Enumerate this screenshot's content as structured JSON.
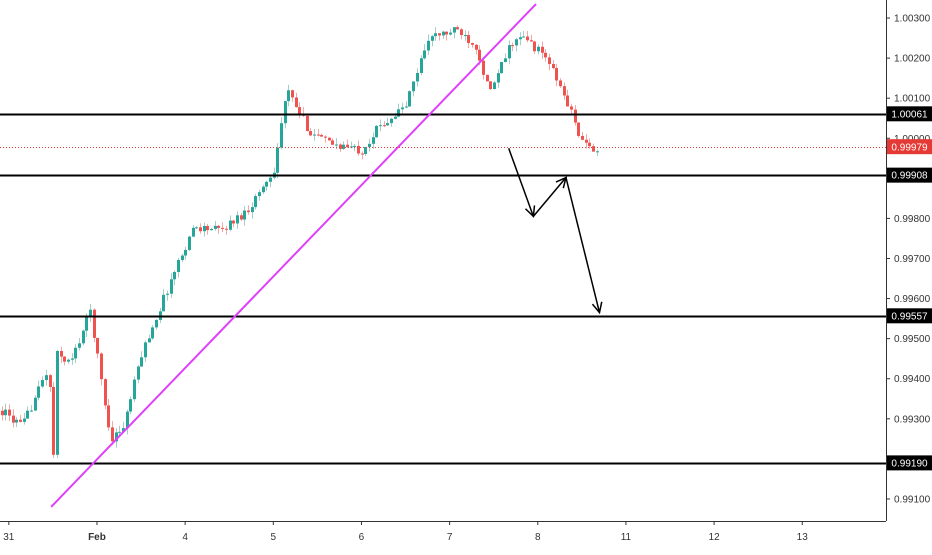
{
  "chart_data": {
    "type": "candlestick",
    "instrument_note": "",
    "y_axis": {
      "ticks": [
        "0.99100",
        "0.99200",
        "0.99300",
        "0.99400",
        "0.99500",
        "0.99600",
        "0.99700",
        "0.99800",
        "0.99900",
        "1.00000",
        "1.00100",
        "1.00200",
        "1.00300"
      ],
      "range": [
        0.99045,
        1.00345
      ]
    },
    "x_axis": {
      "ticks": [
        {
          "label": "31",
          "day": -1
        },
        {
          "label": "Feb",
          "day": 0
        },
        {
          "label": "4",
          "day": 1
        },
        {
          "label": "5",
          "day": 2
        },
        {
          "label": "6",
          "day": 3
        },
        {
          "label": "7",
          "day": 4
        },
        {
          "label": "8",
          "day": 5
        },
        {
          "label": "11",
          "day": 6
        },
        {
          "label": "12",
          "day": 7
        },
        {
          "label": "13",
          "day": 8
        }
      ],
      "range_days": [
        -1.1,
        8.95
      ]
    },
    "horizontal_levels": [
      {
        "label": "1.00061",
        "value": 1.00061
      },
      {
        "label": "0.99908",
        "value": 0.99908
      },
      {
        "label": "0.99557",
        "value": 0.99557
      },
      {
        "label": "0.99190",
        "value": 0.9919
      }
    ],
    "current_price": {
      "label": "0.99979",
      "value": 0.99979
    },
    "trendline": {
      "start": {
        "day": -0.52,
        "price": 0.9908
      },
      "end": {
        "day": 4.98,
        "price": 1.00335
      }
    },
    "projection_path": [
      {
        "day": 4.67,
        "price": 0.99975
      },
      {
        "day": 4.95,
        "price": 0.99805
      },
      {
        "day": 5.32,
        "price": 0.99902
      },
      {
        "day": 5.7,
        "price": 0.99565
      }
    ],
    "price_path": [
      {
        "day": -1.08,
        "price": 0.9932
      },
      {
        "day": -0.85,
        "price": 0.9928
      },
      {
        "day": -0.55,
        "price": 0.9943
      },
      {
        "day": -0.5,
        "price": 0.9919
      },
      {
        "day": -0.46,
        "price": 0.9946
      },
      {
        "day": -0.3,
        "price": 0.9944
      },
      {
        "day": -0.08,
        "price": 0.9957
      },
      {
        "day": 0.15,
        "price": 0.9925
      },
      {
        "day": 0.3,
        "price": 0.9928
      },
      {
        "day": 0.5,
        "price": 0.9946
      },
      {
        "day": 0.9,
        "price": 0.9968
      },
      {
        "day": 1.1,
        "price": 0.9978
      },
      {
        "day": 1.4,
        "price": 0.9977
      },
      {
        "day": 1.7,
        "price": 0.9982
      },
      {
        "day": 2.0,
        "price": 0.9992
      },
      {
        "day": 2.15,
        "price": 1.0012
      },
      {
        "day": 2.4,
        "price": 1.0002
      },
      {
        "day": 2.6,
        "price": 0.9999
      },
      {
        "day": 3.0,
        "price": 0.9997
      },
      {
        "day": 3.2,
        "price": 1.0003
      },
      {
        "day": 3.5,
        "price": 1.0008
      },
      {
        "day": 3.75,
        "price": 1.0025
      },
      {
        "day": 4.1,
        "price": 1.0027
      },
      {
        "day": 4.3,
        "price": 1.0023
      },
      {
        "day": 4.45,
        "price": 1.0011
      },
      {
        "day": 4.7,
        "price": 1.0024
      },
      {
        "day": 4.85,
        "price": 1.0025
      },
      {
        "day": 5.1,
        "price": 1.002
      },
      {
        "day": 5.35,
        "price": 1.0008
      },
      {
        "day": 5.52,
        "price": 0.9998
      },
      {
        "day": 5.68,
        "price": 0.99975
      }
    ],
    "colors": {
      "up": "#26a69a",
      "down": "#ef5350",
      "up_wick": "#a3cfc8",
      "down_wick": "#f5a7a5",
      "level_line": "#000000",
      "trendline": "#e040fb",
      "current_price": "#e53935",
      "axis_label_bg": "#000000"
    }
  }
}
